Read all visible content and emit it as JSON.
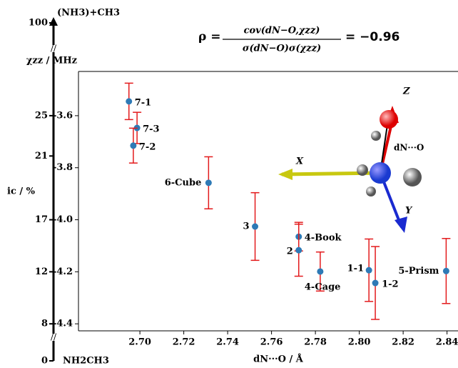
{
  "chart_data": {
    "type": "scatter",
    "formula": {
      "lhs": "ρ =",
      "numerator": "cov(dN−O,χzz)",
      "denominator": "σ(dN−O)σ(χzz)",
      "rhs": "= −0.96"
    },
    "ylabel": "χzz / MHz",
    "xlabel": "dN···O / Å",
    "x": [
      2.695,
      2.6987,
      2.697,
      2.7313,
      2.7525,
      2.7724,
      2.7724,
      2.7822,
      2.8044,
      2.8073,
      2.8396
    ],
    "values": [
      -3.545,
      -3.647,
      -3.715,
      -3.858,
      -4.026,
      -4.065,
      -4.117,
      -4.199,
      -4.194,
      -4.243,
      -4.197
    ],
    "errors": [
      0.07,
      0.06,
      0.067,
      0.1,
      0.13,
      0.055,
      0.1,
      0.075,
      0.12,
      0.14,
      0.125
    ],
    "labels": [
      "7-1",
      "7-3",
      "7-2",
      "6-Cube",
      "3",
      "4-Book",
      "2",
      "4-Cage",
      "1-1",
      "1-2",
      "5-Prism"
    ],
    "color": "#2e7ab6",
    "error_color": "#e31a1c",
    "xlim": [
      2.672,
      2.845
    ],
    "ylim": [
      -4.427,
      -3.43
    ],
    "xticks": [
      {
        "value": 2.7,
        "label": "2.70"
      },
      2.72,
      2.74,
      2.76,
      2.78,
      {
        "value": 2.8,
        "label": "2.80"
      },
      2.82,
      2.84
    ],
    "yticks": [
      -3.6,
      -3.8,
      {
        "value": -4,
        "label": "-4.0"
      },
      -4.2,
      -4.4
    ],
    "side_axis": {
      "label": "ic / %",
      "top_label": "(NH3)+CH3",
      "bottom_label": "NH2CH3",
      "ticks": [
        100,
        25,
        21,
        17,
        12,
        8,
        0
      ]
    },
    "molecule_labels": {
      "z": "Z",
      "x": "X",
      "y": "Y",
      "d": "dN···O"
    }
  }
}
